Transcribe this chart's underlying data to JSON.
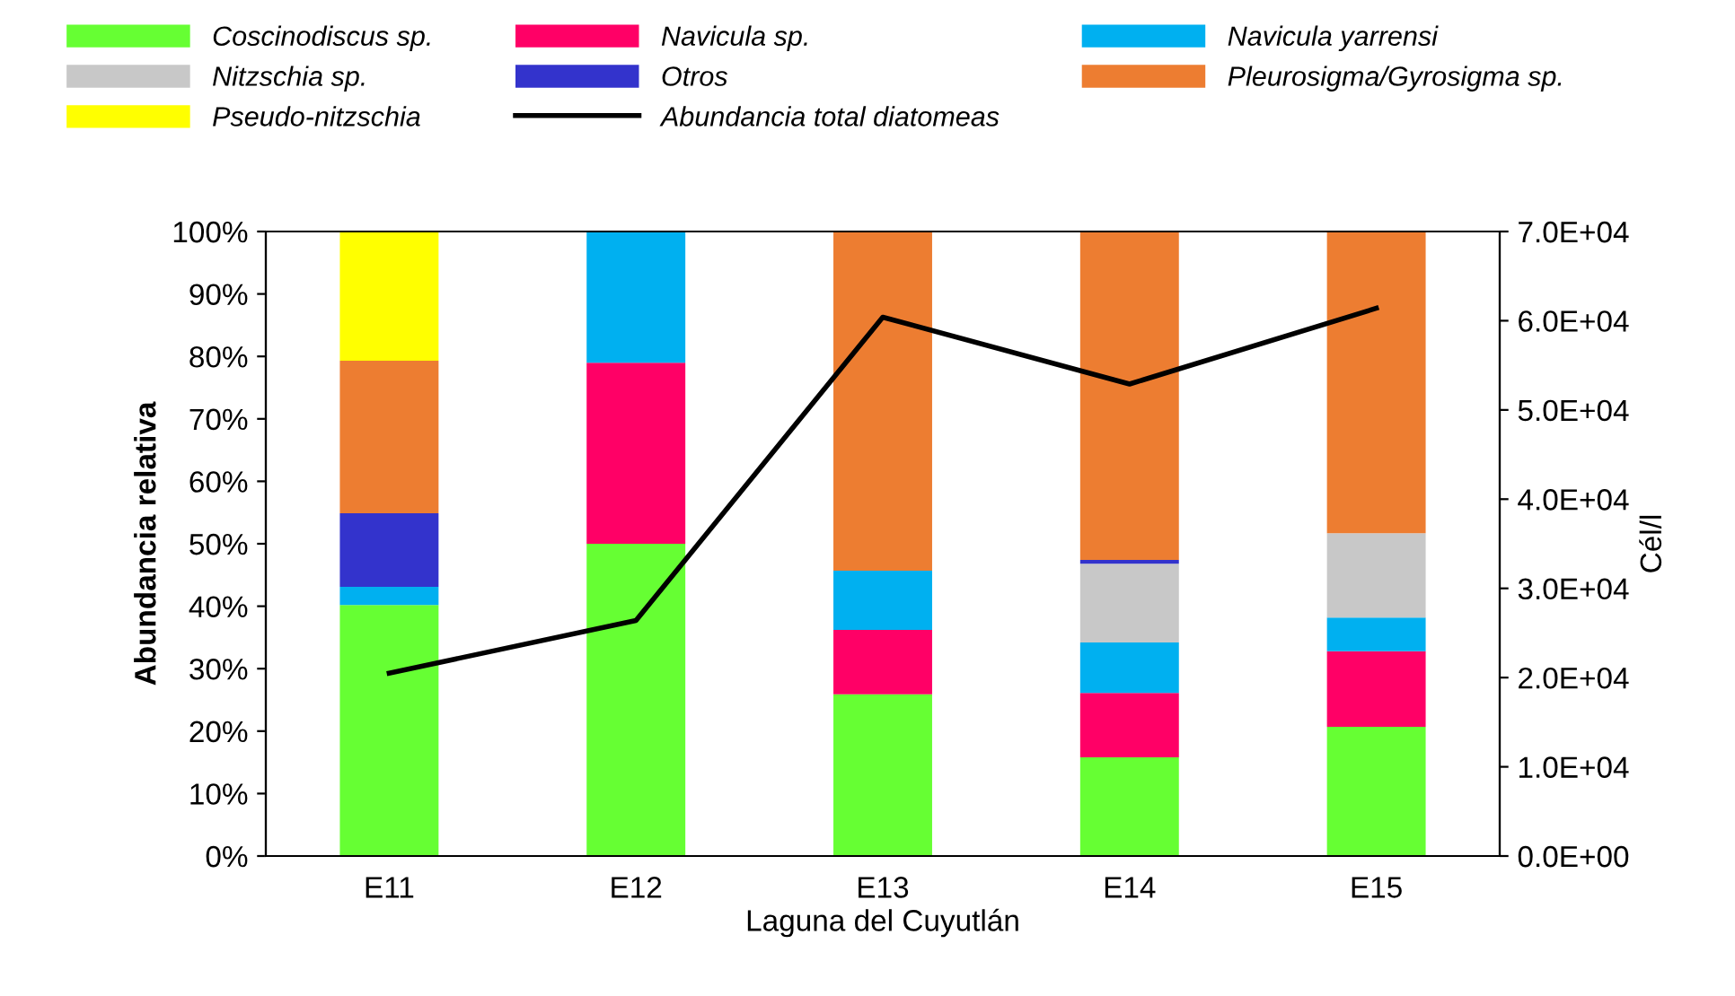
{
  "chart_data": {
    "type": "bar",
    "stacked": true,
    "xlabel": "Laguna del Cuyutlán",
    "ylabel": "Abundancia relativa",
    "y2label": "Cél/l",
    "categories": [
      "E11",
      "E12",
      "E13",
      "E14",
      "E15"
    ],
    "series": [
      {
        "name": "Coscinodiscus sp.",
        "color": "#66ff33",
        "values": [
          40.2,
          50,
          25.9,
          15.8,
          20.7
        ]
      },
      {
        "name": "Navicula sp.",
        "color": "#ff0066",
        "values": [
          null,
          29,
          10.3,
          10.3,
          12.1
        ]
      },
      {
        "name": "Navicula yarrensi",
        "color": "#00b0f0",
        "values": [
          2.9,
          21,
          9.5,
          8.1,
          5.4
        ]
      },
      {
        "name": "Nitzschia sp.",
        "color": "#c8c8c8",
        "values": [
          null,
          null,
          null,
          12.6,
          13.5
        ]
      },
      {
        "name": "Otros",
        "color": "#3333cc",
        "values": [
          11.8,
          null,
          null,
          0.6,
          null
        ]
      },
      {
        "name": "Pleurosigma/Gyrosigma sp.",
        "color": "#ed7d31",
        "values": [
          24.4,
          null,
          54.3,
          52.6,
          48.3
        ]
      },
      {
        "name": "Pseudo-nitzschia",
        "color": "#ffff00",
        "values": [
          20.7,
          null,
          null,
          null,
          null
        ]
      },
      {
        "name": "Abundancia total diatomeas",
        "color": "#000000",
        "type": "line",
        "axis": "y2",
        "values": [
          20500,
          26400,
          60400,
          52900,
          61400
        ]
      }
    ],
    "ylim": [
      0,
      100
    ],
    "yticks": [
      {
        "value": 0,
        "label": "0%"
      },
      {
        "value": 10,
        "label": "10%"
      },
      {
        "value": 20,
        "label": "20%"
      },
      {
        "value": 30,
        "label": "30%"
      },
      {
        "value": 40,
        "label": "40%"
      },
      {
        "value": 50,
        "label": "50%"
      },
      {
        "value": 60,
        "label": "60%"
      },
      {
        "value": 70,
        "label": "70%"
      },
      {
        "value": 80,
        "label": "80%"
      },
      {
        "value": 90,
        "label": "90%"
      },
      {
        "value": 100,
        "label": "100%"
      }
    ],
    "y2lim": [
      0,
      70000
    ],
    "y2ticks": [
      {
        "value": 0,
        "label": "0.0E+00"
      },
      {
        "value": 10000,
        "label": "1.0E+04"
      },
      {
        "value": 20000,
        "label": "2.0E+04"
      },
      {
        "value": 30000,
        "label": "3.0E+04"
      },
      {
        "value": 40000,
        "label": "4.0E+04"
      },
      {
        "value": 50000,
        "label": "5.0E+04"
      },
      {
        "value": 60000,
        "label": "6.0E+04"
      },
      {
        "value": 70000,
        "label": "7.0E+04"
      }
    ],
    "legend": "top",
    "grid": false,
    "marker": "none",
    "line_style": "solid"
  }
}
